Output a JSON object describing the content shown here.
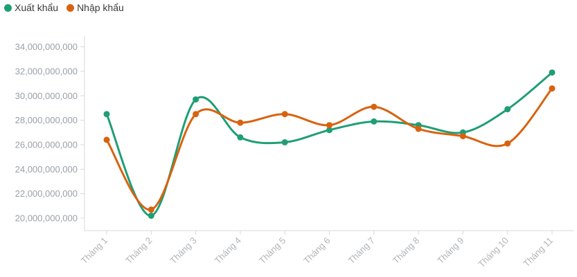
{
  "legend": {
    "items": [
      {
        "label": "Xuất khẩu",
        "color": "#1f9e75"
      },
      {
        "label": "Nhập khẩu",
        "color": "#d9620f"
      }
    ]
  },
  "chart_data": {
    "type": "line",
    "categories": [
      "Tháng 1",
      "Tháng 2",
      "Tháng 3",
      "Tháng 4",
      "Tháng 5",
      "Tháng 6",
      "Tháng 7",
      "Tháng 8",
      "Tháng 9",
      "Tháng 10",
      "Tháng 11"
    ],
    "series": [
      {
        "name": "Xuất khẩu",
        "color": "#1f9e75",
        "values": [
          28500000000,
          20200000000,
          29700000000,
          26600000000,
          26200000000,
          27200000000,
          27900000000,
          27600000000,
          27000000000,
          28900000000,
          31900000000
        ]
      },
      {
        "name": "Nhập khẩu",
        "color": "#d9620f",
        "values": [
          26400000000,
          20700000000,
          28500000000,
          27800000000,
          28500000000,
          27600000000,
          29100000000,
          27300000000,
          26700000000,
          26100000000,
          30600000000
        ]
      }
    ],
    "yticks": [
      "20,000,000,000",
      "22,000,000,000",
      "24,000,000,000",
      "26,000,000,000",
      "28,000,000,000",
      "30,000,000,000",
      "32,000,000,000",
      "34,000,000,000"
    ],
    "ylim": [
      19000000000,
      35000000000
    ],
    "curve": "smooth",
    "grid": false,
    "legend_position": "top-left",
    "title": "",
    "xlabel": "",
    "ylabel": ""
  }
}
